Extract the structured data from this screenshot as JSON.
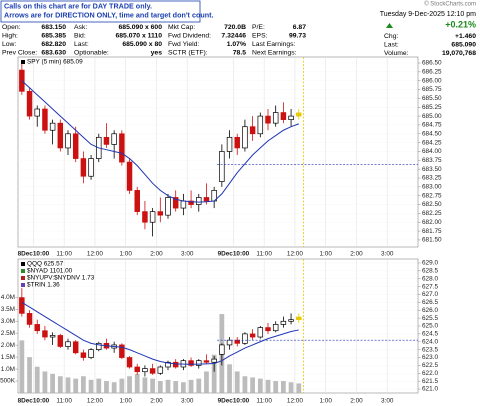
{
  "header": {
    "note": [
      "Calls on this chart are for DAY TRADE only.",
      "Arrows are for DIRECTION ONLY, time and target don't count."
    ],
    "columns": [
      [
        [
          "Open:",
          "683.150"
        ],
        [
          "High:",
          "685.385"
        ],
        [
          "Low:",
          "682.820"
        ],
        [
          "Prev Close:",
          "683.630"
        ]
      ],
      [
        [
          "Ask:",
          "685.090 x 600"
        ],
        [
          "Bid:",
          "685.070 x 1110"
        ],
        [
          "Last:",
          "685.090 x 80"
        ],
        [
          "Optionable:",
          "yes"
        ]
      ],
      [
        [
          "Mkt Cap:",
          "720.0B"
        ],
        [
          "Fwd Dividend:",
          "7.32446"
        ],
        [
          "Fwd Yield:",
          "1.07%"
        ],
        [
          "SCTR (ETF):",
          "78.5"
        ]
      ],
      [
        [
          "P/E:",
          "6.87"
        ],
        [
          "EPS:",
          "99.73"
        ],
        [
          "Last Earnings:"
        ],
        [
          "Next Earnings:"
        ]
      ]
    ],
    "copyright": "© StockCharts.com",
    "date": "Tuesday 9-Dec-2025 12:10 pm",
    "pct_change": "+0.21%",
    "right_rows": [
      [
        "Chg:",
        "+1.460"
      ],
      [
        "Last:",
        "685.090"
      ],
      [
        "Volume:",
        "19,070,768"
      ]
    ]
  },
  "chart_data": [
    {
      "type": "candlestick",
      "xlim": [
        0,
        156
      ],
      "xticks": [
        {
          "value": 6,
          "label": "8Dec10:00"
        },
        {
          "value": 18,
          "label": "11:00"
        },
        {
          "value": 30,
          "label": "12:00"
        },
        {
          "value": 42,
          "label": "1:00"
        },
        {
          "value": 54,
          "label": "2:00"
        },
        {
          "value": 66,
          "label": "3:00"
        },
        {
          "value": 84,
          "label": "9Dec10:00"
        },
        {
          "value": 96,
          "label": "11:00"
        },
        {
          "value": 108,
          "label": "12:00"
        },
        {
          "value": 120,
          "label": "1:00"
        },
        {
          "value": 132,
          "label": "2:00"
        },
        {
          "value": 144,
          "label": "3:00"
        }
      ],
      "ylim": [
        681.3,
        686.67
      ],
      "yticks": [
        {
          "value": 681.5,
          "label": "681.50"
        },
        {
          "value": 681.75,
          "label": "681.75"
        },
        {
          "value": 682,
          "label": "682.00"
        },
        {
          "value": 682.25,
          "label": "682.25"
        },
        {
          "value": 682.5,
          "label": "682.50"
        },
        {
          "value": 682.75,
          "label": "682.75"
        },
        {
          "value": 683,
          "label": "683.00"
        },
        {
          "value": 683.25,
          "label": "683.25"
        },
        {
          "value": 683.5,
          "label": "683.50"
        },
        {
          "value": 683.75,
          "label": "683.75"
        },
        {
          "value": 684,
          "label": "684.00"
        },
        {
          "value": 684.25,
          "label": "684.25"
        },
        {
          "value": 684.5,
          "label": "684.50"
        },
        {
          "value": 684.75,
          "label": "684.75"
        },
        {
          "value": 685,
          "label": "685.00"
        },
        {
          "value": 685.25,
          "label": "685.25"
        },
        {
          "value": 685.5,
          "label": "685.50"
        },
        {
          "value": 685.75,
          "label": "685.75"
        },
        {
          "value": 686,
          "label": "686.00"
        },
        {
          "value": 686.25,
          "label": "686.25"
        },
        {
          "value": 686.5,
          "label": "686.50"
        }
      ],
      "grid": true,
      "x": [
        1.5,
        4.5,
        7.5,
        10.5,
        13.5,
        16.5,
        19.5,
        22.5,
        25.5,
        28.5,
        31.5,
        34.5,
        37.5,
        40.5,
        43.5,
        46.5,
        49.5,
        52.5,
        55.5,
        58.5,
        61.5,
        64.5,
        67.5,
        70.5,
        73.5,
        76.5,
        79.5,
        82.5,
        85.5,
        88.5,
        91.5,
        94.5,
        97.5,
        100.5,
        103.5,
        106.5,
        109.5
      ],
      "series": [
        {
          "name": "SPY (5 min) 685.09",
          "up_color": "#000000",
          "down_color": "#cc1111",
          "last_color": "#e8c800",
          "open": [
            686.3,
            685.7,
            685.0,
            685.2,
            684.6,
            684.8,
            684.1,
            684.5,
            683.8,
            683.3,
            683.8,
            684.4,
            684.2,
            684.5,
            683.7,
            682.9,
            682.3,
            682.0,
            682.3,
            682.2,
            682.7,
            682.4,
            682.6,
            682.5,
            682.7,
            682.6,
            683.15,
            684.0,
            684.4,
            684.1,
            684.7,
            684.5,
            685.0,
            684.8,
            685.1,
            684.9,
            685.0
          ],
          "high": [
            686.5,
            685.8,
            685.3,
            685.3,
            684.9,
            684.9,
            684.6,
            684.7,
            684.0,
            683.9,
            684.5,
            684.8,
            684.6,
            684.6,
            683.8,
            683.0,
            682.6,
            682.4,
            682.7,
            682.8,
            682.9,
            682.8,
            682.9,
            682.8,
            683.1,
            683.0,
            684.2,
            684.6,
            684.5,
            684.9,
            685.0,
            685.1,
            685.2,
            685.3,
            685.39,
            685.2,
            685.2
          ],
          "low": [
            685.6,
            684.9,
            684.7,
            684.5,
            684.2,
            684.0,
            683.9,
            683.7,
            683.1,
            683.2,
            683.7,
            684.1,
            683.8,
            683.6,
            682.8,
            682.2,
            681.8,
            681.6,
            682.0,
            682.1,
            682.3,
            682.2,
            682.4,
            682.3,
            682.5,
            682.4,
            683.0,
            683.8,
            683.9,
            684.0,
            684.3,
            684.4,
            684.6,
            684.7,
            684.8,
            684.7,
            684.9
          ],
          "close": [
            685.7,
            685.0,
            685.2,
            684.6,
            684.8,
            684.1,
            684.5,
            683.8,
            683.3,
            683.8,
            684.4,
            684.2,
            684.5,
            683.7,
            682.9,
            682.3,
            682.0,
            682.3,
            682.2,
            682.7,
            682.4,
            682.6,
            682.5,
            682.7,
            682.6,
            682.9,
            684.0,
            684.4,
            684.1,
            684.7,
            684.5,
            685.0,
            684.8,
            685.1,
            684.9,
            685.0,
            685.09
          ]
        },
        {
          "type": "line",
          "color": "#1f35b5",
          "values": [
            686.0,
            685.8,
            685.6,
            685.4,
            685.2,
            685.0,
            684.8,
            684.6,
            684.4,
            684.2,
            684.1,
            684.05,
            684.0,
            683.95,
            683.8,
            683.6,
            683.35,
            683.1,
            682.9,
            682.75,
            682.65,
            682.6,
            682.58,
            682.57,
            682.58,
            682.6,
            682.8,
            683.1,
            683.4,
            683.65,
            683.9,
            684.1,
            684.3,
            684.45,
            684.6,
            684.7,
            684.78
          ]
        }
      ],
      "ref_line": {
        "value": 683.63,
        "color": "#1f35b5"
      }
    },
    {
      "type": "candlestick",
      "xlim": [
        0,
        156
      ],
      "xticks": [
        {
          "value": 6,
          "label": "8Dec10:00"
        },
        {
          "value": 18,
          "label": "11:00"
        },
        {
          "value": 30,
          "label": "12:00"
        },
        {
          "value": 42,
          "label": "1:00"
        },
        {
          "value": 54,
          "label": "2:00"
        },
        {
          "value": 66,
          "label": "3:00"
        },
        {
          "value": 84,
          "label": "9Dec10:00"
        },
        {
          "value": 96,
          "label": "11:00"
        },
        {
          "value": 108,
          "label": "12:00"
        },
        {
          "value": 120,
          "label": "1:00"
        },
        {
          "value": 132,
          "label": "2:00"
        },
        {
          "value": 144,
          "label": "3:00"
        }
      ],
      "ylim": [
        620.75,
        629.25
      ],
      "yticks": [
        {
          "value": 621,
          "label": "621.0"
        },
        {
          "value": 621.5,
          "label": "621.5"
        },
        {
          "value": 622,
          "label": "622.0"
        },
        {
          "value": 622.5,
          "label": "622.5"
        },
        {
          "value": 623,
          "label": "623.0"
        },
        {
          "value": 623.5,
          "label": "623.5"
        },
        {
          "value": 624,
          "label": "624.0"
        },
        {
          "value": 624.5,
          "label": "624.5"
        },
        {
          "value": 625,
          "label": "625.0"
        },
        {
          "value": 625.5,
          "label": "625.5"
        },
        {
          "value": 626,
          "label": "626.0"
        },
        {
          "value": 626.5,
          "label": "626.5"
        },
        {
          "value": 627,
          "label": "627.0"
        },
        {
          "value": 627.5,
          "label": "627.5"
        },
        {
          "value": 628,
          "label": "628.0"
        },
        {
          "value": 628.5,
          "label": "628.5"
        },
        {
          "value": 629,
          "label": "629.0"
        }
      ],
      "y2lim": [
        0,
        5600000
      ],
      "y2ticks": [
        {
          "value": 500000,
          "label": "500K"
        },
        {
          "value": 1000000,
          "label": "1.0M"
        },
        {
          "value": 1500000,
          "label": "1.5M"
        },
        {
          "value": 2000000,
          "label": "2.0M"
        },
        {
          "value": 2500000,
          "label": "2.5M"
        },
        {
          "value": 3000000,
          "label": "3.0M"
        },
        {
          "value": 3500000,
          "label": "3.5M"
        },
        {
          "value": 4000000,
          "label": "4.0M"
        }
      ],
      "grid": true,
      "x": [
        1.5,
        4.5,
        7.5,
        10.5,
        13.5,
        16.5,
        19.5,
        22.5,
        25.5,
        28.5,
        31.5,
        34.5,
        37.5,
        40.5,
        43.5,
        46.5,
        49.5,
        52.5,
        55.5,
        58.5,
        61.5,
        64.5,
        67.5,
        70.5,
        73.5,
        76.5,
        79.5,
        82.5,
        85.5,
        88.5,
        91.5,
        94.5,
        97.5,
        100.5,
        103.5,
        106.5,
        109.5
      ],
      "legend": [
        {
          "name": "$NYAD 1101.00",
          "color": "#2a8a2a"
        },
        {
          "name": "$NYUPV:$NYDNV 1.73",
          "color": "#b02020"
        },
        {
          "name": "$TRIN 1.36",
          "color": "#6a3fb0"
        }
      ],
      "series": [
        {
          "type": "bar",
          "axis": "y2",
          "color": "#b0b0b0",
          "values": [
            2200000,
            1500000,
            1100000,
            900000,
            800000,
            700000,
            650000,
            600000,
            700000,
            550000,
            600000,
            500000,
            450000,
            600000,
            700000,
            800000,
            650000,
            600000,
            500000,
            550000,
            500000,
            450000,
            550000,
            600000,
            900000,
            1600000,
            3300000,
            1200000,
            900000,
            700000,
            650000,
            600000,
            550000,
            500000,
            500000,
            450000,
            400000
          ]
        },
        {
          "name": "QQQ 625.57",
          "up_color": "#000000",
          "down_color": "#cc1111",
          "last_color": "#e8c800",
          "open": [
            626.8,
            625.8,
            625.1,
            624.7,
            624.3,
            624.4,
            623.7,
            624.0,
            623.3,
            623.0,
            623.5,
            623.9,
            623.6,
            623.8,
            623.0,
            622.4,
            622.1,
            622.3,
            622.0,
            622.4,
            622.7,
            622.4,
            622.8,
            622.5,
            622.8,
            622.7,
            623.2,
            623.8,
            624.1,
            623.9,
            624.5,
            624.3,
            624.9,
            624.7,
            625.1,
            625.3,
            625.4
          ],
          "high": [
            627.4,
            626.0,
            625.4,
            625.0,
            624.6,
            624.5,
            624.2,
            624.1,
            623.5,
            623.6,
            624.0,
            624.2,
            624.0,
            623.9,
            623.1,
            622.6,
            622.5,
            622.6,
            622.5,
            622.8,
            622.9,
            622.9,
            623.0,
            622.9,
            623.2,
            623.1,
            623.9,
            624.3,
            624.3,
            624.6,
            624.8,
            625.0,
            625.2,
            625.3,
            625.6,
            625.8,
            625.8
          ],
          "low": [
            625.6,
            624.9,
            624.5,
            624.1,
            623.8,
            623.6,
            623.5,
            623.2,
            622.8,
            622.9,
            623.4,
            623.5,
            623.3,
            622.9,
            622.3,
            621.9,
            621.8,
            621.9,
            621.9,
            622.2,
            622.3,
            622.2,
            622.4,
            622.3,
            622.6,
            622.1,
            622.5,
            623.5,
            623.7,
            623.8,
            624.1,
            624.2,
            624.5,
            624.6,
            624.9,
            625.1,
            625.2
          ],
          "close": [
            625.8,
            625.1,
            624.7,
            624.3,
            624.4,
            623.7,
            624.0,
            623.3,
            623.0,
            623.5,
            623.9,
            623.6,
            623.8,
            623.0,
            622.4,
            622.1,
            622.3,
            622.0,
            622.4,
            622.7,
            622.4,
            622.8,
            622.5,
            622.8,
            622.7,
            622.9,
            623.8,
            624.1,
            623.9,
            624.5,
            624.3,
            624.9,
            624.7,
            625.1,
            625.3,
            625.4,
            625.57
          ]
        },
        {
          "type": "line",
          "color": "#1f35b5",
          "values": [
            626.5,
            626.2,
            625.9,
            625.6,
            625.3,
            625.0,
            624.7,
            624.4,
            624.1,
            623.9,
            623.8,
            623.75,
            623.7,
            623.65,
            623.5,
            623.3,
            623.1,
            622.9,
            622.75,
            622.65,
            622.6,
            622.58,
            622.57,
            622.58,
            622.6,
            622.62,
            622.8,
            623.1,
            623.35,
            623.6,
            623.8,
            624.0,
            624.2,
            624.35,
            624.5,
            624.65,
            624.75
          ]
        }
      ],
      "ref_line": {
        "value": 624.1,
        "color": "#1f35b5"
      }
    }
  ]
}
